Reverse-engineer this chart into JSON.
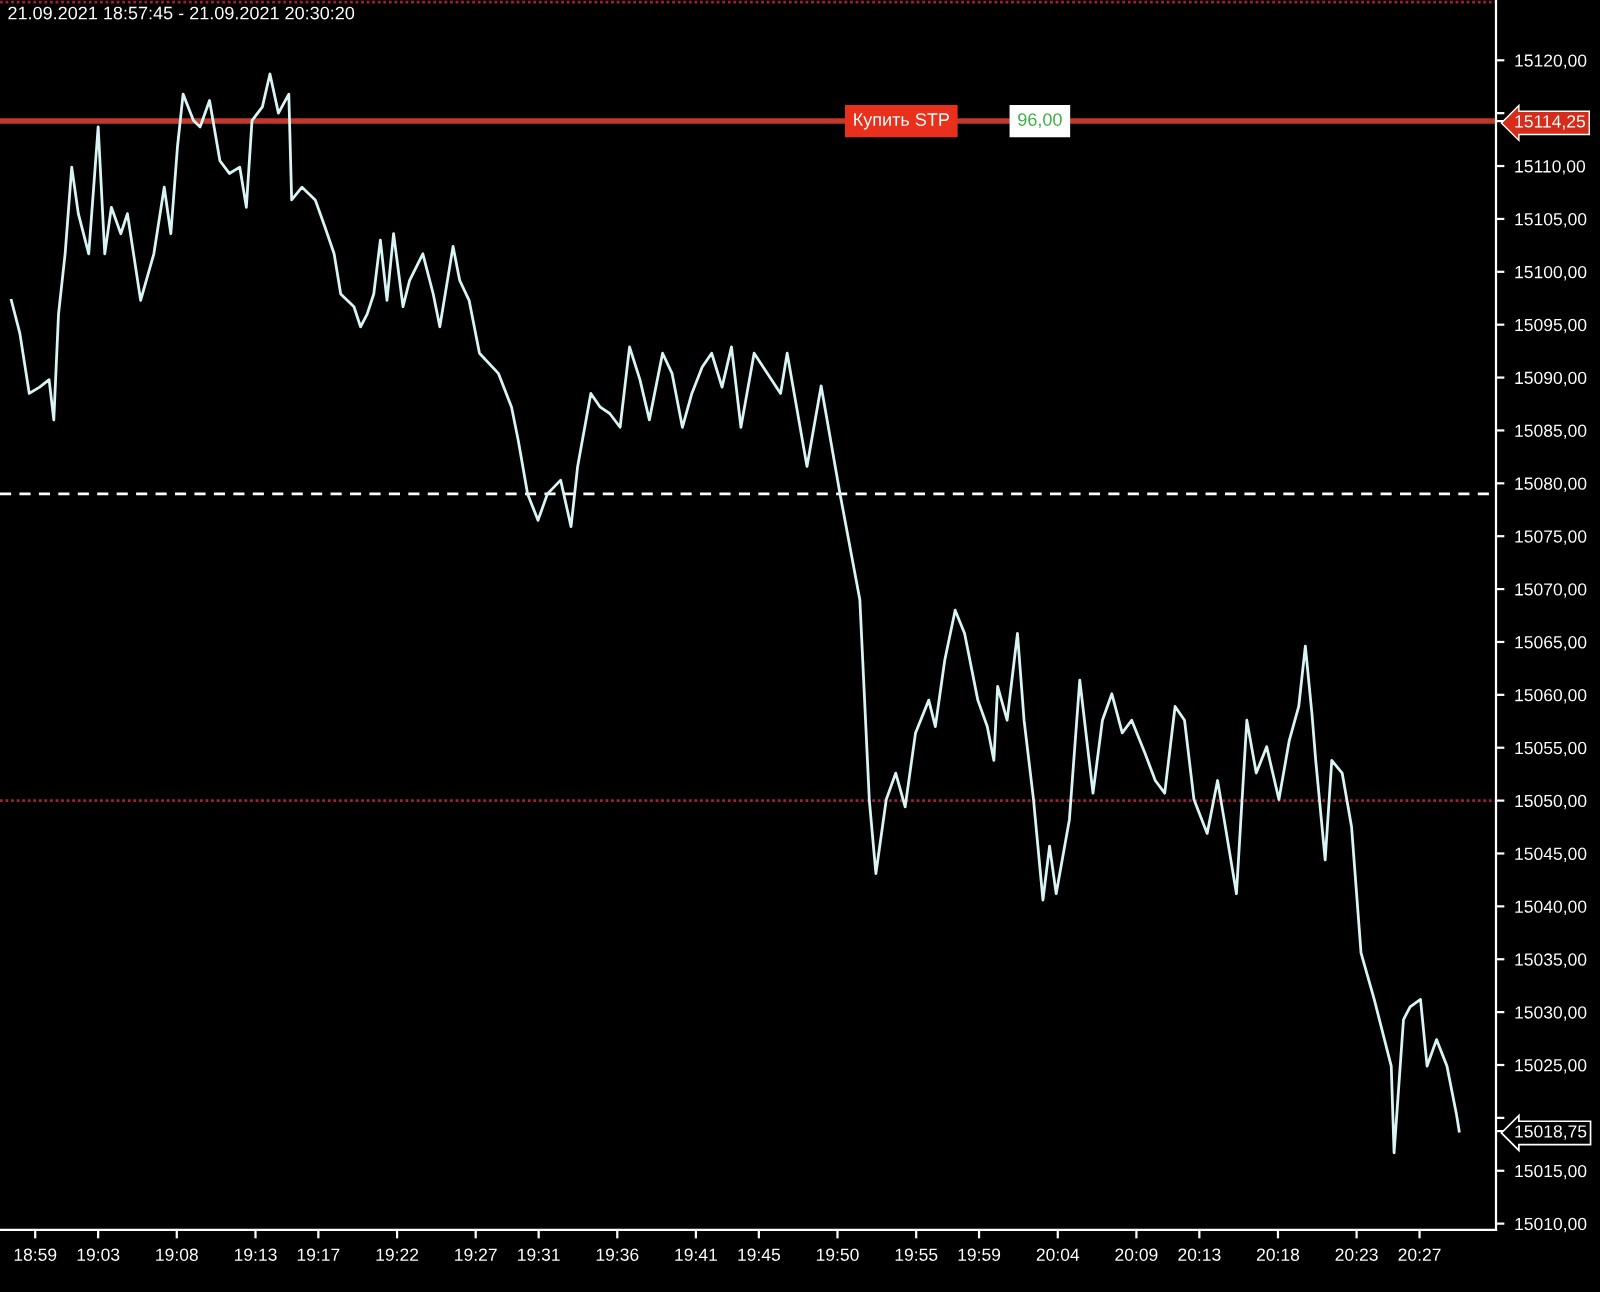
{
  "chart_data": {
    "type": "line",
    "title": "21.09.2021 18:57:45 - 21.09.2021 20:30:20",
    "x": [
      18.958,
      18.967,
      18.977,
      18.988,
      18.998,
      19.003,
      19.008,
      19.015,
      19.022,
      19.029,
      19.04,
      19.05,
      19.057,
      19.064,
      19.074,
      19.081,
      19.095,
      19.109,
      19.12,
      19.127,
      19.134,
      19.14,
      19.151,
      19.158,
      19.168,
      19.179,
      19.189,
      19.2,
      19.207,
      19.213,
      19.224,
      19.232,
      19.241,
      19.252,
      19.255,
      19.266,
      19.28,
      19.29,
      19.3,
      19.307,
      19.321,
      19.328,
      19.335,
      19.342,
      19.349,
      19.356,
      19.363,
      19.373,
      19.38,
      19.394,
      19.405,
      19.412,
      19.426,
      19.433,
      19.443,
      19.454,
      19.474,
      19.488,
      19.495,
      19.505,
      19.516,
      19.526,
      19.54,
      19.551,
      19.558,
      19.572,
      19.582,
      19.592,
      19.603,
      19.613,
      19.624,
      19.634,
      19.648,
      19.658,
      19.669,
      19.679,
      19.69,
      19.7,
      19.711,
      19.721,
      19.731,
      19.745,
      19.773,
      19.78,
      19.801,
      19.816,
      19.836,
      19.857,
      19.867,
      19.874,
      19.885,
      19.895,
      19.905,
      19.916,
      19.93,
      19.937,
      19.947,
      19.958,
      19.968,
      19.982,
      19.992,
      19.999,
      20.003,
      20.013,
      20.024,
      20.031,
      20.041,
      20.051,
      20.058,
      20.065,
      20.079,
      20.09,
      20.104,
      20.114,
      20.124,
      20.135,
      20.145,
      20.159,
      20.17,
      20.18,
      20.191,
      20.201,
      20.211,
      20.225,
      20.236,
      20.243,
      20.256,
      20.267,
      20.277,
      20.288,
      20.301,
      20.312,
      20.322,
      20.329,
      20.336,
      20.34,
      20.35,
      20.357,
      20.368,
      20.378,
      20.388,
      20.402,
      20.42,
      20.423,
      20.433,
      20.44,
      20.451,
      20.458,
      20.468,
      20.479,
      20.489,
      20.492
    ],
    "series": [
      {
        "color": "#d8f4f4",
        "values": [
          15097.3,
          15094.2,
          15088.5,
          15089.1,
          15089.8,
          15086.0,
          15096.0,
          15101.7,
          15109.9,
          15105.5,
          15101.7,
          15113.7,
          15101.7,
          15106.1,
          15103.6,
          15105.5,
          15097.3,
          15101.7,
          15108.0,
          15103.6,
          15111.8,
          15116.8,
          15114.3,
          15113.7,
          15116.2,
          15110.5,
          15109.3,
          15109.9,
          15106.1,
          15114.3,
          15115.6,
          15118.7,
          15115.0,
          15116.8,
          15106.8,
          15108.0,
          15106.8,
          15104.3,
          15101.7,
          15097.9,
          15096.7,
          15094.8,
          15096.0,
          15097.9,
          15103.0,
          15097.3,
          15103.6,
          15096.7,
          15099.2,
          15101.7,
          15097.9,
          15094.8,
          15102.4,
          15099.2,
          15097.3,
          15092.3,
          15090.4,
          15087.2,
          15084.1,
          15079.0,
          15076.5,
          15079.0,
          15080.3,
          15075.9,
          15081.6,
          15088.5,
          15087.2,
          15086.6,
          15085.3,
          15092.9,
          15089.8,
          15086.0,
          15092.3,
          15090.4,
          15085.3,
          15088.5,
          15091.0,
          15092.3,
          15089.1,
          15092.9,
          15085.3,
          15092.3,
          15088.5,
          15092.3,
          15081.6,
          15089.2,
          15079.0,
          15069.0,
          15050.1,
          15043.1,
          15050.1,
          15052.6,
          15049.4,
          15056.4,
          15059.5,
          15057.0,
          15063.3,
          15068.0,
          15065.8,
          15059.5,
          15057.0,
          15053.8,
          15060.8,
          15057.6,
          15065.8,
          15057.6,
          15050.1,
          15040.6,
          15045.7,
          15041.2,
          15048.2,
          15061.4,
          15050.7,
          15057.6,
          15060.1,
          15056.4,
          15057.6,
          15054.5,
          15051.9,
          15050.7,
          15058.9,
          15057.6,
          15050.1,
          15046.9,
          15051.9,
          15048.2,
          15041.2,
          15057.6,
          15052.6,
          15055.1,
          15050.1,
          15055.7,
          15058.9,
          15064.6,
          15058.2,
          15053.8,
          15044.4,
          15053.8,
          15052.6,
          15047.5,
          15035.6,
          15031.2,
          15024.9,
          15016.7,
          15029.3,
          15030.5,
          15031.2,
          15024.9,
          15027.4,
          15024.9,
          15020.4,
          15018.75
        ]
      }
    ],
    "xlim": [
      18.946,
      20.531
    ],
    "ylim": [
      15009.4,
      15125.7
    ],
    "xticks": [
      {
        "value": 18.9833,
        "label": "18:59"
      },
      {
        "value": 19.05,
        "label": "19:03"
      },
      {
        "value": 19.1333,
        "label": "19:08"
      },
      {
        "value": 19.2167,
        "label": "19:13"
      },
      {
        "value": 19.2833,
        "label": "19:17"
      },
      {
        "value": 19.3667,
        "label": "19:22"
      },
      {
        "value": 19.45,
        "label": "19:27"
      },
      {
        "value": 19.5167,
        "label": "19:31"
      },
      {
        "value": 19.6,
        "label": "19:36"
      },
      {
        "value": 19.6833,
        "label": "19:41"
      },
      {
        "value": 19.75,
        "label": "19:45"
      },
      {
        "value": 19.8333,
        "label": "19:50"
      },
      {
        "value": 19.9167,
        "label": "19:55"
      },
      {
        "value": 19.9833,
        "label": "19:59"
      },
      {
        "value": 20.0667,
        "label": "20:04"
      },
      {
        "value": 20.15,
        "label": "20:09"
      },
      {
        "value": 20.2167,
        "label": "20:13"
      },
      {
        "value": 20.3,
        "label": "20:18"
      },
      {
        "value": 20.3833,
        "label": "20:23"
      },
      {
        "value": 20.45,
        "label": "20:27"
      }
    ],
    "yticks": [
      {
        "value": 15010,
        "label": "15010,00"
      },
      {
        "value": 15015,
        "label": "15015,00"
      },
      {
        "value": 15018.75,
        "label": "15018,75"
      },
      {
        "value": 15020,
        "label": null
      },
      {
        "value": 15025,
        "label": "15025,00"
      },
      {
        "value": 15030,
        "label": "15030,00"
      },
      {
        "value": 15035,
        "label": "15035,00"
      },
      {
        "value": 15040,
        "label": "15040,00"
      },
      {
        "value": 15045,
        "label": "15045,00"
      },
      {
        "value": 15050,
        "label": "15050,00"
      },
      {
        "value": 15055,
        "label": "15055,00"
      },
      {
        "value": 15060,
        "label": "15060,00"
      },
      {
        "value": 15065,
        "label": "15065,00"
      },
      {
        "value": 15070,
        "label": "15070,00"
      },
      {
        "value": 15075,
        "label": "15075,00"
      },
      {
        "value": 15080,
        "label": "15080,00"
      },
      {
        "value": 15085,
        "label": "15085,00"
      },
      {
        "value": 15090,
        "label": "15090,00"
      },
      {
        "value": 15095,
        "label": "15095,00"
      },
      {
        "value": 15100,
        "label": "15100,00"
      },
      {
        "value": 15105,
        "label": "15105,00"
      },
      {
        "value": 15110,
        "label": "15110,00"
      },
      {
        "value": 15114.25,
        "label": "15114,25"
      },
      {
        "value": 15115,
        "label": null
      },
      {
        "value": 15120,
        "label": "15120,00"
      }
    ],
    "ref_lines": [
      {
        "axis": "y",
        "value": 15125.5,
        "color": "#a0203a",
        "line_style": "dotted"
      },
      {
        "axis": "y",
        "value": 15079.0,
        "color": "#ffffff",
        "line_style": "dashed"
      },
      {
        "axis": "y",
        "value": 15050.0,
        "color": "#a0203a",
        "line_style": "dotted"
      },
      {
        "axis": "y",
        "value": 15114.25,
        "color": "#c0392b",
        "line_style": "solid",
        "label": "Купить STP"
      }
    ],
    "annotations": [
      "96,00"
    ],
    "grid": false,
    "legend": false,
    "marker": "none",
    "line_style": "solid"
  }
}
